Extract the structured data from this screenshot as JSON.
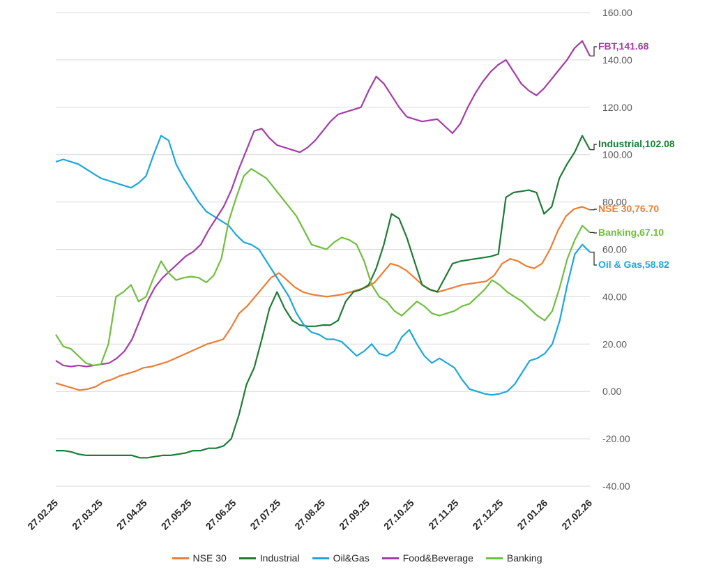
{
  "chart_data": {
    "type": "line",
    "title": "",
    "xlabel": "",
    "ylabel": "",
    "ylim": [
      -40,
      160
    ],
    "y_ticks": [
      "160.00",
      "140.00",
      "120.00",
      "100.00",
      "80.00",
      "60.00",
      "40.00",
      "20.00",
      "0.00",
      "-20.00",
      "-40.00"
    ],
    "x_ticks": [
      "27.02.25",
      "27.03.25",
      "27.04.25",
      "27.05.25",
      "27.06.25",
      "27.07.25",
      "27.08.25",
      "27.09.25",
      "27.10.25",
      "27.11.25",
      "27.12.25",
      "27.01.26",
      "27.02.26"
    ],
    "grid": "horizontal",
    "legend_position": "bottom",
    "series": [
      {
        "name": "NSE 30",
        "color": "#ED7D31",
        "end_label": "NSE 30,76.70",
        "values": [
          3.5,
          2.5,
          1.5,
          0.5,
          1,
          2,
          4,
          5,
          6.5,
          7.5,
          8.5,
          10,
          10.5,
          11.5,
          12.5,
          14,
          15.5,
          17,
          18.5,
          20,
          21,
          22,
          27,
          33,
          36,
          40,
          44,
          48,
          50,
          47,
          44,
          42,
          41,
          40.5,
          40,
          40.5,
          41,
          42,
          43,
          44,
          46,
          50,
          54,
          53,
          51,
          48,
          45,
          43,
          42,
          43,
          44,
          45,
          45.5,
          46,
          46.5,
          49,
          54,
          56,
          55,
          53,
          52,
          54,
          60,
          68,
          74,
          77,
          78,
          76.7
        ]
      },
      {
        "name": "Industrial",
        "color": "#1E7B34",
        "end_label": "Industrial,102.08",
        "values": [
          -25,
          -25,
          -25.5,
          -26.5,
          -27,
          -27,
          -27,
          -27,
          -27,
          -27,
          -27,
          -28,
          -28,
          -27.5,
          -27,
          -27,
          -26.5,
          -26,
          -25,
          -25,
          -24,
          -24,
          -23,
          -20,
          -10,
          3,
          10,
          22,
          35,
          42,
          35,
          30,
          28,
          27.5,
          27.5,
          28,
          28,
          30,
          38,
          42,
          43,
          45,
          52,
          62,
          75,
          73,
          65,
          55,
          45,
          43,
          42,
          48,
          54,
          55,
          55.5,
          56,
          56.5,
          57,
          58,
          82,
          84,
          84.5,
          85,
          84,
          75,
          78,
          90,
          96,
          101,
          108,
          102.08
        ]
      },
      {
        "name": "Oil&Gas",
        "color": "#1AA7DD",
        "end_label": "Oil & Gas,58.82",
        "values": [
          97,
          98,
          97,
          96,
          94,
          92,
          90,
          89,
          88,
          87,
          86,
          88,
          91,
          100,
          108,
          106,
          96,
          90,
          85,
          80,
          76,
          74,
          72,
          70,
          66,
          63,
          62,
          60,
          55,
          50,
          45,
          40,
          33,
          28,
          25,
          24,
          22,
          22,
          21,
          18,
          15,
          17,
          20,
          16,
          15,
          17,
          23,
          26,
          20,
          15,
          12,
          14,
          12,
          10,
          5,
          1,
          0,
          -1,
          -1.5,
          -1,
          0,
          3,
          8,
          13,
          14,
          16,
          20,
          30,
          45,
          58,
          62,
          58.82
        ]
      },
      {
        "name": "Food&Beverage",
        "color": "#A53BA9",
        "end_label": "FBT,141.68",
        "values": [
          13,
          11,
          10.5,
          11,
          10.5,
          11,
          11.5,
          12,
          14,
          17,
          22,
          30,
          38,
          44,
          48,
          51,
          54,
          57,
          59,
          62,
          68,
          73,
          78,
          85,
          94,
          102,
          110,
          111,
          107,
          104,
          103,
          102,
          101,
          103,
          106,
          110,
          114,
          117,
          118,
          119,
          120,
          127,
          133,
          130,
          125,
          120,
          116,
          115,
          114,
          114.5,
          115,
          112,
          109,
          113,
          120,
          126,
          131,
          135,
          138,
          140,
          135,
          130,
          127,
          125,
          128,
          132,
          136,
          140,
          145,
          148,
          141.68
        ]
      },
      {
        "name": "Banking",
        "color": "#6FBF3C",
        "end_label": "Banking,67.10",
        "values": [
          24,
          19,
          18,
          15,
          12,
          11,
          11.5,
          20,
          40,
          42,
          45,
          38,
          40,
          48,
          55,
          50,
          47,
          48,
          48.5,
          48,
          46,
          49,
          56,
          72,
          82,
          91,
          94,
          92,
          90,
          86,
          82,
          78,
          74,
          68,
          62,
          61,
          60,
          63,
          65,
          64,
          62,
          55,
          45,
          40,
          38,
          34,
          32,
          35,
          38,
          36,
          33,
          32,
          33,
          34,
          36,
          37,
          40,
          43,
          47,
          45,
          42,
          40,
          38,
          35,
          32,
          30,
          34,
          44,
          56,
          64,
          70,
          67.1
        ]
      }
    ]
  }
}
